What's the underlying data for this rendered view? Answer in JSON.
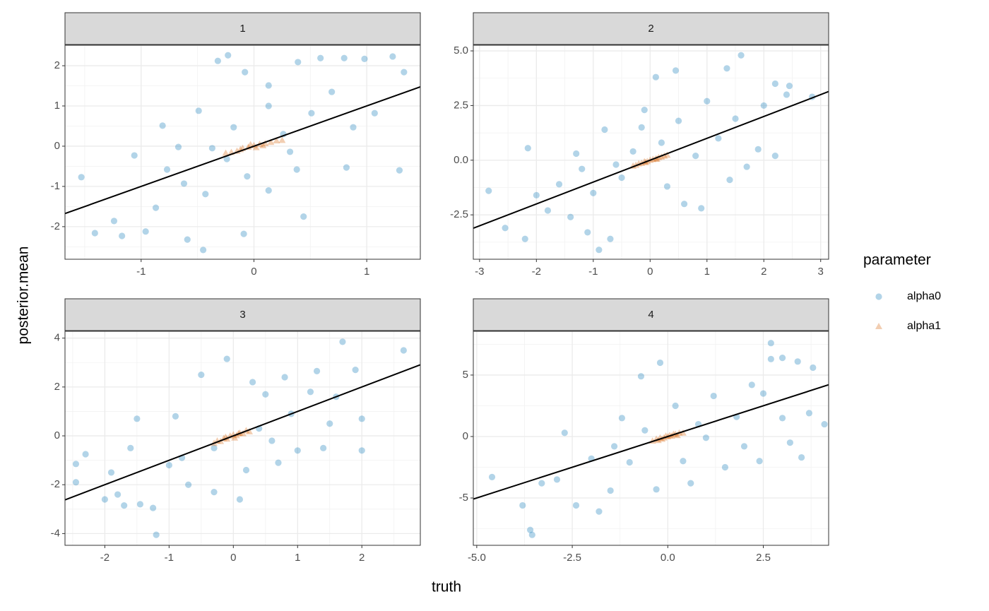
{
  "xlabel": "truth",
  "ylabel": "posterior.mean",
  "legend": {
    "title": "parameter",
    "position": "right"
  },
  "chart_data": [
    {
      "type": "scatter",
      "title": "1",
      "grid": true,
      "xlim": [
        -1.675,
        1.475
      ],
      "ylim": [
        -2.81,
        2.51
      ],
      "xticks": [
        -1,
        0,
        1
      ],
      "yticks": [
        -2,
        -1,
        0,
        1,
        2
      ],
      "abline": {
        "slope": 1,
        "intercept": 0
      },
      "series": [
        {
          "name": "alpha0",
          "color": "#0072B2",
          "opacity": 0.3,
          "marker": "circle",
          "x": [
            -1.53,
            -1.41,
            -1.24,
            -1.17,
            -0.96,
            -0.87,
            -0.77,
            -0.59,
            -0.45,
            -0.32,
            -0.23,
            -0.08,
            0.13,
            0.39,
            0.59,
            0.8,
            0.98,
            1.23,
            1.33,
            1.29,
            0.82,
            0.44,
            -0.09,
            -0.67,
            -0.81,
            -0.49,
            -0.37,
            -0.24,
            0.13,
            0.26,
            0.38,
            0.51,
            0.69,
            0.88,
            1.07,
            0.13,
            -0.06,
            -0.43,
            -0.18,
            0.32,
            -1.06,
            -0.62
          ],
          "values": [
            -0.77,
            -2.16,
            -1.86,
            -2.23,
            -2.12,
            -1.53,
            -0.58,
            -2.32,
            -2.58,
            2.12,
            2.26,
            1.84,
            1.51,
            2.09,
            2.19,
            2.19,
            2.17,
            2.23,
            1.84,
            -0.6,
            -0.53,
            -1.75,
            -2.18,
            -0.02,
            0.51,
            0.88,
            -0.05,
            -0.32,
            1,
            0.3,
            -0.58,
            0.82,
            1.35,
            0.47,
            0.82,
            -1.1,
            -0.75,
            -1.19,
            0.47,
            -0.14,
            -0.23,
            -0.93
          ]
        },
        {
          "name": "alpha1",
          "color": "#D55E00",
          "opacity": 0.3,
          "marker": "triangle",
          "x": [
            -0.25,
            -0.2,
            -0.15,
            -0.1,
            -0.05,
            0,
            0.05,
            0.1,
            0.15,
            0.2,
            0.25,
            -0.12,
            0.08,
            0.02,
            -0.03
          ],
          "values": [
            -0.17,
            -0.15,
            -0.12,
            -0.05,
            -0.02,
            0.02,
            0.05,
            0.07,
            0.1,
            0.14,
            0.15,
            -0.08,
            0.02,
            -0.03,
            0.04
          ]
        }
      ]
    },
    {
      "type": "scatter",
      "title": "2",
      "grid": true,
      "xlim": [
        -3.11,
        3.14
      ],
      "ylim": [
        -4.53,
        5.26
      ],
      "xticks": [
        -3,
        -2,
        -1,
        0,
        1,
        2,
        3
      ],
      "yticks": [
        -2.5,
        {
          "value": 0,
          "label": "0.0"
        },
        2.5,
        {
          "value": 5,
          "label": "5.0"
        }
      ],
      "abline": {
        "slope": 1,
        "intercept": 0
      },
      "series": [
        {
          "name": "alpha0",
          "color": "#0072B2",
          "opacity": 0.3,
          "marker": "circle",
          "x": [
            -2.84,
            -2.55,
            -2.2,
            -2.15,
            -2.0,
            -1.8,
            -1.6,
            -1.4,
            -1.2,
            -1.1,
            -0.9,
            -0.7,
            -0.8,
            -1.0,
            -0.5,
            -0.3,
            -0.15,
            -0.1,
            0.1,
            0.45,
            0.3,
            0.6,
            0.9,
            0.5,
            0.8,
            1.0,
            1.2,
            1.35,
            1.6,
            1.5,
            1.7,
            1.9,
            2.0,
            2.2,
            2.4,
            2.45,
            2.85,
            2.2,
            1.4,
            0.2,
            -0.6,
            -1.3
          ],
          "values": [
            -1.4,
            -3.1,
            -3.6,
            0.55,
            -1.6,
            -2.3,
            -1.1,
            -2.6,
            -0.4,
            -3.3,
            -4.1,
            -3.6,
            1.4,
            -1.5,
            -0.8,
            0.4,
            1.5,
            2.3,
            3.8,
            4.1,
            -1.2,
            -2.0,
            -2.2,
            1.8,
            0.2,
            2.7,
            1.0,
            4.2,
            4.8,
            1.9,
            -0.3,
            0.5,
            2.5,
            3.5,
            3.0,
            3.4,
            2.9,
            0.2,
            -0.9,
            0.8,
            -0.2,
            0.3
          ]
        },
        {
          "name": "alpha1",
          "color": "#D55E00",
          "opacity": 0.3,
          "marker": "triangle",
          "x": [
            -0.3,
            -0.25,
            -0.2,
            -0.15,
            -0.1,
            -0.05,
            0,
            0.05,
            0.1,
            0.15,
            0.2,
            0.25,
            0.3,
            -0.08,
            0.12
          ],
          "values": [
            -0.26,
            -0.22,
            -0.15,
            -0.13,
            -0.06,
            -0.05,
            0.01,
            0.04,
            0.07,
            0.13,
            0.15,
            0.2,
            0.24,
            -0.1,
            0.06
          ]
        }
      ]
    },
    {
      "type": "scatter",
      "title": "3",
      "grid": true,
      "xlim": [
        -2.62,
        2.91
      ],
      "ylim": [
        -4.48,
        4.28
      ],
      "xticks": [
        -2,
        -1,
        0,
        1,
        2
      ],
      "yticks": [
        -4,
        -2,
        0,
        2,
        4
      ],
      "abline": {
        "slope": 1,
        "intercept": 0
      },
      "series": [
        {
          "name": "alpha0",
          "color": "#0072B2",
          "opacity": 0.3,
          "marker": "circle",
          "x": [
            -2.45,
            -2.45,
            -2.3,
            -2.0,
            -1.8,
            -1.7,
            -1.6,
            -1.45,
            -1.25,
            -1.2,
            -1.0,
            -0.9,
            -0.7,
            -0.5,
            -0.3,
            -0.1,
            0.1,
            0.2,
            0.3,
            0.5,
            0.6,
            0.8,
            1.0,
            1.2,
            1.4,
            1.6,
            1.7,
            1.9,
            2.0,
            2.0,
            2.65,
            1.3,
            0.9,
            0.4,
            -0.3,
            -0.8,
            -1.5,
            -1.9,
            0.7,
            1.5
          ],
          "values": [
            -1.15,
            -1.9,
            -0.75,
            -2.6,
            -2.4,
            -2.85,
            -0.5,
            -2.8,
            -2.95,
            -4.05,
            -1.2,
            0.8,
            -2.0,
            2.5,
            -2.3,
            3.15,
            -2.6,
            -1.4,
            2.2,
            1.7,
            -0.2,
            2.4,
            -0.6,
            1.8,
            -0.5,
            1.6,
            3.85,
            2.7,
            -0.6,
            0.7,
            3.5,
            2.65,
            0.9,
            0.3,
            -0.5,
            -0.9,
            0.7,
            -1.5,
            -1.1,
            0.5
          ]
        },
        {
          "name": "alpha1",
          "color": "#D55E00",
          "opacity": 0.3,
          "marker": "triangle",
          "x": [
            -0.3,
            -0.25,
            -0.2,
            -0.15,
            -0.1,
            -0.05,
            0,
            0.05,
            0.1,
            0.15,
            0.2,
            0.25,
            -0.12,
            0.08,
            0.02
          ],
          "values": [
            -0.3,
            -0.2,
            -0.22,
            -0.1,
            -0.12,
            0.0,
            0.05,
            0.02,
            0.12,
            0.1,
            0.22,
            0.18,
            -0.05,
            0.1,
            -0.08
          ]
        }
      ]
    },
    {
      "type": "scatter",
      "title": "4",
      "grid": true,
      "xlim": [
        -5.09,
        4.21
      ],
      "ylim": [
        -8.85,
        8.56
      ],
      "xticks": [
        {
          "value": -5,
          "label": "-5.0"
        },
        -2.5,
        {
          "value": 0,
          "label": "0.0"
        },
        2.5
      ],
      "yticks": [
        -5,
        0,
        5
      ],
      "abline": {
        "slope": 1,
        "intercept": 0
      },
      "series": [
        {
          "name": "alpha0",
          "color": "#0072B2",
          "opacity": 0.3,
          "marker": "circle",
          "x": [
            -4.6,
            -3.8,
            -3.6,
            -3.55,
            -3.3,
            -2.9,
            -2.7,
            -2.4,
            -2.0,
            -1.8,
            -1.5,
            -1.2,
            -1.0,
            -0.7,
            -0.3,
            -0.2,
            0.2,
            0.4,
            0.6,
            1.0,
            1.2,
            1.5,
            1.8,
            2.0,
            2.2,
            2.5,
            2.7,
            2.7,
            3.0,
            3.0,
            3.4,
            3.5,
            3.8,
            3.7,
            4.1,
            3.2,
            2.4,
            0.8,
            -0.6,
            -1.4
          ],
          "values": [
            -3.3,
            -5.6,
            -7.6,
            -8.0,
            -3.8,
            -3.5,
            0.3,
            -5.6,
            -1.8,
            -6.1,
            -4.4,
            1.5,
            -2.1,
            4.9,
            -4.3,
            6.0,
            2.5,
            -2.0,
            -3.8,
            -0.1,
            3.3,
            -2.5,
            1.6,
            -0.8,
            4.2,
            3.5,
            7.6,
            6.3,
            6.4,
            1.5,
            6.1,
            -1.7,
            5.6,
            1.9,
            1.0,
            -0.5,
            -2.0,
            1.0,
            0.5,
            -0.8
          ]
        },
        {
          "name": "alpha1",
          "color": "#D55E00",
          "opacity": 0.3,
          "marker": "triangle",
          "x": [
            -0.4,
            -0.3,
            -0.25,
            -0.2,
            -0.1,
            -0.05,
            0,
            0.05,
            0.1,
            0.2,
            0.25,
            0.3,
            0.4,
            -0.15,
            0.15
          ],
          "values": [
            -0.35,
            -0.2,
            -0.3,
            -0.1,
            -0.1,
            0.05,
            0.0,
            0.1,
            0.05,
            0.2,
            0.1,
            0.3,
            0.3,
            -0.2,
            0.2
          ]
        }
      ]
    }
  ]
}
